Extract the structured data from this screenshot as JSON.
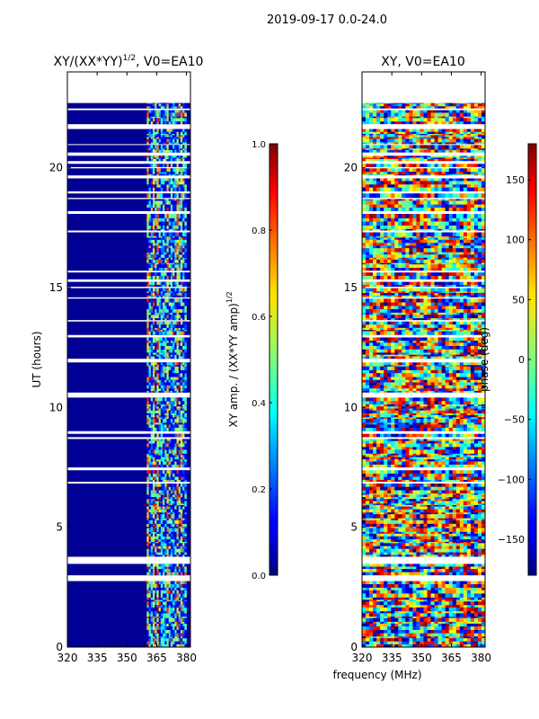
{
  "suptitle": "2019-09-17 0.0-24.0",
  "xlabel": "frequency (MHz)",
  "colors": {
    "background": "#ffffff",
    "axes": "#000000",
    "colormap": "jet"
  },
  "chart_data": [
    {
      "type": "heatmap",
      "title": "XY/(XX*YY)",
      "title_superscript": "1/2",
      "title_suffix": ", V0=EA10",
      "xlabel": "frequency (MHz)",
      "ylabel": "UT (hours)",
      "xlim": [
        320,
        382
      ],
      "ylim": [
        0,
        24
      ],
      "xticks": [
        320,
        335,
        350,
        365,
        380
      ],
      "yticks": [
        0,
        5,
        10,
        15,
        20
      ],
      "colorbar": {
        "label": "XY amp. / (XX*YY amp)",
        "label_superscript": "1/2",
        "range": [
          0.0,
          1.0
        ],
        "ticks": [
          "0.0",
          "0.2",
          "0.4",
          "0.6",
          "0.8",
          "1.0"
        ]
      },
      "data_top_hour": 22.7,
      "active_freq_range_mhz": [
        360,
        380
      ],
      "note": "amplitude near 0 (dark blue) below 360 MHz; patchy values 0.2–1.0 between 360 and 380 MHz"
    },
    {
      "type": "heatmap",
      "title": "XY, V0=EA10",
      "xlabel": "frequency (MHz)",
      "ylabel": "",
      "xlim": [
        320,
        382
      ],
      "ylim": [
        0,
        24
      ],
      "xticks": [
        320,
        335,
        350,
        365,
        380
      ],
      "yticks": [
        0,
        5,
        10,
        15,
        20
      ],
      "colorbar": {
        "label": "phase (deg)",
        "range": [
          -180,
          180
        ],
        "ticks": [
          "−150",
          "−100",
          "−50",
          "0",
          "50",
          "100",
          "150"
        ]
      },
      "data_top_hour": 22.7,
      "note": "noisy phase values spanning −180 to 180 degrees across all frequencies"
    }
  ]
}
